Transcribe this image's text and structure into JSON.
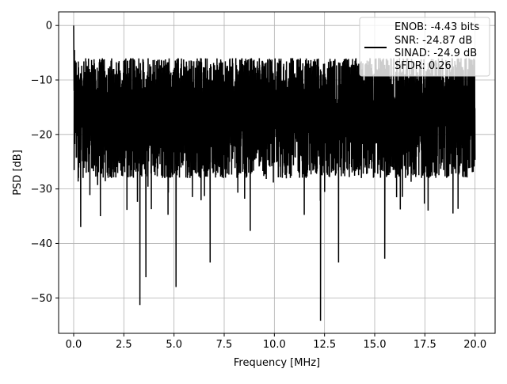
{
  "chart_data": {
    "type": "line",
    "title": "",
    "xlabel": "Frequency [MHz]",
    "ylabel": "PSD [dB]",
    "xlim": [
      -0.75,
      21.0
    ],
    "ylim": [
      -56.5,
      2.5
    ],
    "xticks": [
      0.0,
      2.5,
      5.0,
      7.5,
      10.0,
      12.5,
      15.0,
      17.5,
      20.0
    ],
    "xtick_labels": [
      "0.0",
      "2.5",
      "5.0",
      "7.5",
      "10.0",
      "12.5",
      "15.0",
      "17.5",
      "20.0"
    ],
    "yticks": [
      0,
      -10,
      -20,
      -30,
      -40,
      -50
    ],
    "ytick_labels": [
      "0",
      "−10",
      "−20",
      "−30",
      "−40",
      "−50"
    ],
    "grid": true,
    "legend_position": "top-right",
    "series": [
      {
        "name": "",
        "color": "#000000",
        "band_top_db": -6,
        "band_bottom_db": -28,
        "start_peak_db": 0,
        "notable_minima": [
          {
            "x": 0.35,
            "y": -37
          },
          {
            "x": 3.3,
            "y": -51.3
          },
          {
            "x": 3.6,
            "y": -46.2
          },
          {
            "x": 5.1,
            "y": -48
          },
          {
            "x": 6.8,
            "y": -43.5
          },
          {
            "x": 8.8,
            "y": -37.7
          },
          {
            "x": 12.3,
            "y": -54.2
          },
          {
            "x": 13.2,
            "y": -43.5
          },
          {
            "x": 15.5,
            "y": -42.8
          },
          {
            "x": 18.9,
            "y": -34.5
          }
        ]
      }
    ],
    "annotations": [
      "ENOB: -4.43 bits",
      "SNR: -24.87 dB",
      "SINAD: -24.9 dB",
      "SFDR: 0.26"
    ]
  }
}
